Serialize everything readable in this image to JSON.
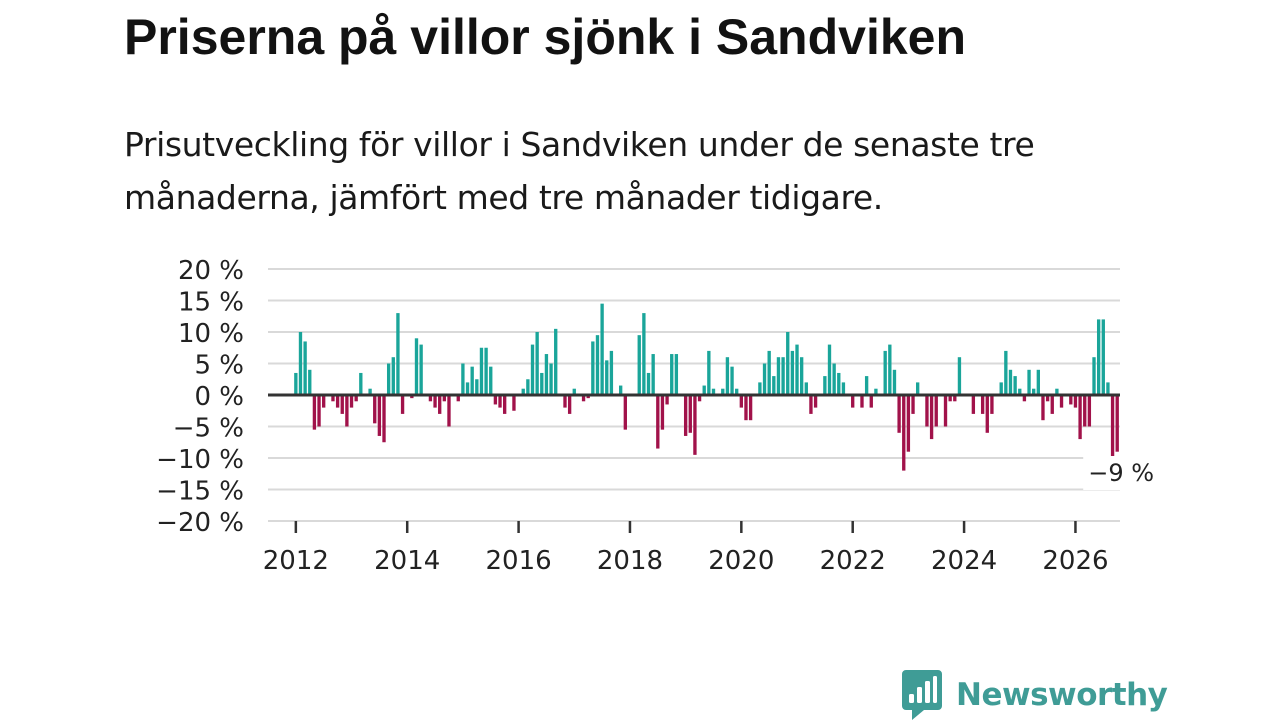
{
  "title": "Priserna på villor sjönk i Sandviken",
  "subtitle": "Prisutveckling för villor i Sandviken under de senaste tre månaderna, jämfört med tre månader tidigare.",
  "brand": {
    "name": "Newsworthy",
    "color": "#3f9c96",
    "icon": "chart-bubble-icon"
  },
  "colors": {
    "positive": "#1aa59a",
    "negative": "#a1124a",
    "grid": "#d9d9d9",
    "zero_line": "#333333"
  },
  "chart_data": {
    "type": "bar",
    "unit": "%",
    "ylim": [
      -20,
      20
    ],
    "yticks": [
      20,
      15,
      10,
      5,
      0,
      -5,
      -10,
      -15,
      -20
    ],
    "ytick_labels": [
      "20 %",
      "15 %",
      "10 %",
      "5 %",
      "0 %",
      "−5 %",
      "−10 %",
      "−15 %",
      "−20 %"
    ],
    "xlim": [
      2011.5,
      2026.8
    ],
    "xticks": [
      2012,
      2014,
      2016,
      2018,
      2020,
      2022,
      2024,
      2026
    ],
    "xtick_labels": [
      "2012",
      "2014",
      "2016",
      "2018",
      "2020",
      "2022",
      "2024",
      "2026"
    ],
    "start": 2012.0,
    "step_months": 1,
    "values": [
      3.5,
      10,
      8.5,
      4,
      -5.5,
      -5,
      -2,
      0,
      -1,
      -2,
      -3,
      -5,
      -2,
      -1,
      3.5,
      0,
      1,
      -4.5,
      -6.5,
      -7.5,
      5,
      6,
      13,
      -3,
      0,
      -0.5,
      9,
      8,
      0,
      -1,
      -2,
      -3,
      -1,
      -5,
      0,
      -1,
      5,
      2,
      4.5,
      2.5,
      7.5,
      7.5,
      4.5,
      -1.5,
      -2,
      -3,
      0,
      -2.5,
      0,
      1,
      2.5,
      8,
      10,
      3.5,
      6.5,
      5,
      10.5,
      0,
      -2,
      -3,
      1,
      0,
      -1,
      -0.5,
      8.5,
      9.5,
      14.5,
      5.5,
      7,
      0,
      1.5,
      -5.5,
      0,
      0,
      9.5,
      13,
      3.5,
      6.5,
      -8.5,
      -5.5,
      -1.5,
      6.5,
      6.5,
      0,
      -6.5,
      -6,
      -9.5,
      -1,
      1.5,
      7,
      1,
      0,
      1,
      6,
      4.5,
      1,
      -2,
      -4,
      -4,
      0,
      2,
      5,
      7,
      3,
      6,
      6,
      10,
      7,
      8,
      6,
      2,
      -3,
      -2,
      0,
      3,
      8,
      5,
      3.5,
      2,
      0,
      -2,
      0,
      -2,
      3,
      -2,
      1,
      0,
      7,
      8,
      4,
      -6,
      -12,
      -9,
      -3,
      2,
      0,
      -5,
      -7,
      -5,
      0,
      -5,
      -1,
      -1,
      6,
      0,
      0,
      -3,
      0,
      -3,
      -6,
      -3,
      0,
      2,
      7,
      4,
      3,
      1,
      -1,
      4,
      1,
      4,
      -4,
      -1,
      -3,
      1,
      -2,
      0,
      -1.5,
      -2,
      -7,
      -5,
      -5,
      6,
      12,
      12,
      2,
      -10,
      -9
    ],
    "highlight_label": "−9 %"
  }
}
